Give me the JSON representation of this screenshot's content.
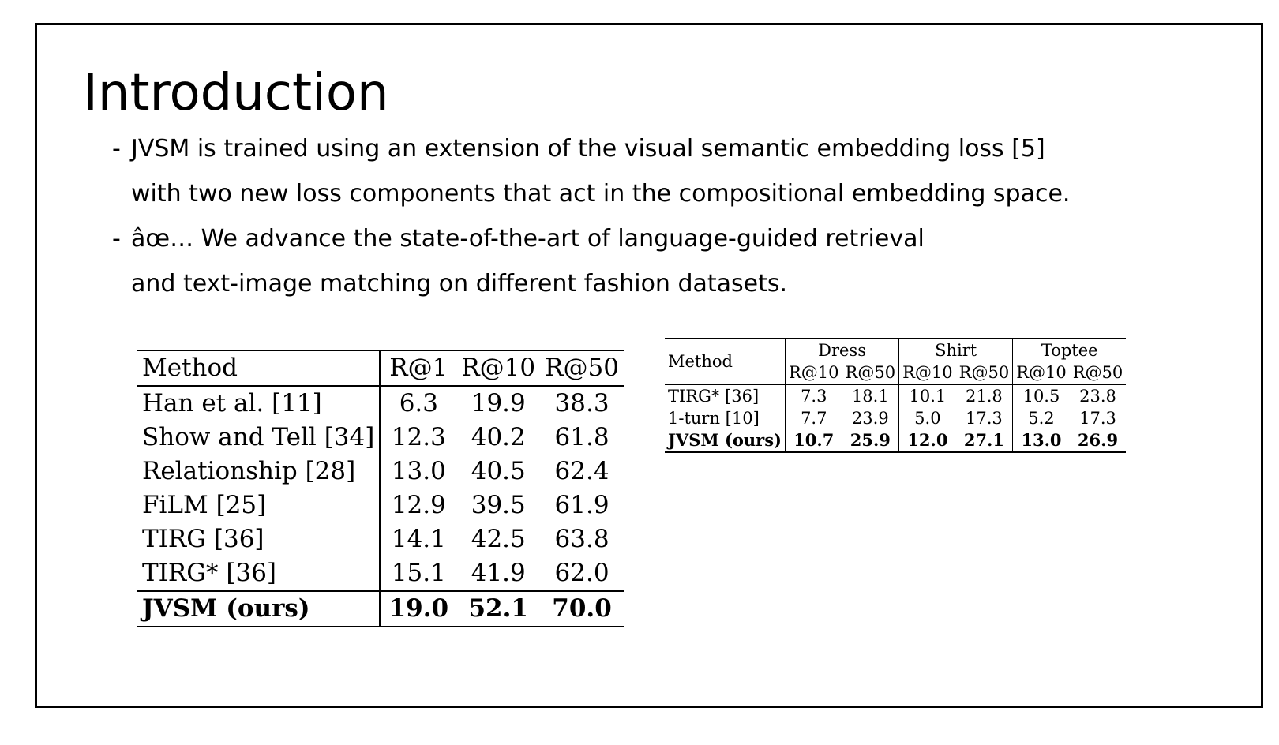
{
  "title": "Introduction",
  "bullets": [
    {
      "dash": "-",
      "text": "JVSM is trained using an extension of the visual semantic embedding loss [5]"
    },
    {
      "dash": "",
      "text": "with two new loss components that act in the compositional embedding space."
    },
    {
      "dash": "-",
      "text": "âœ… We advance the state-of-the-art of language-guided retrieval"
    },
    {
      "dash": "",
      "text": "and text-image matching on different fashion datasets."
    }
  ],
  "table_left": {
    "headers": [
      "Method",
      "R@1",
      "R@10",
      "R@50"
    ],
    "rows": [
      [
        "Han et al. [11]",
        "6.3",
        "19.9",
        "38.3"
      ],
      [
        "Show and Tell [34]",
        "12.3",
        "40.2",
        "61.8"
      ],
      [
        "Relationship [28]",
        "13.0",
        "40.5",
        "62.4"
      ],
      [
        "FiLM [25]",
        "12.9",
        "39.5",
        "61.9"
      ],
      [
        "TIRG [36]",
        "14.1",
        "42.5",
        "63.8"
      ],
      [
        "TIRG* [36]",
        "15.1",
        "41.9",
        "62.0"
      ]
    ],
    "last_row": [
      "JVSM (ours)",
      "19.0",
      "52.1",
      "70.0"
    ]
  },
  "table_right": {
    "method_header": "Method",
    "groups": [
      "Dress",
      "Shirt",
      "Toptee"
    ],
    "subheaders": [
      "R@10",
      "R@50",
      "R@10",
      "R@50",
      "R@10",
      "R@50"
    ],
    "rows": [
      [
        "TIRG* [36]",
        "7.3",
        "18.1",
        "10.1",
        "21.8",
        "10.5",
        "23.8"
      ],
      [
        "1-turn [10]",
        "7.7",
        "23.9",
        "5.0",
        "17.3",
        "5.2",
        "17.3"
      ]
    ],
    "last_row": [
      "JVSM (ours)",
      "10.7",
      "25.9",
      "12.0",
      "27.1",
      "13.0",
      "26.9"
    ]
  }
}
